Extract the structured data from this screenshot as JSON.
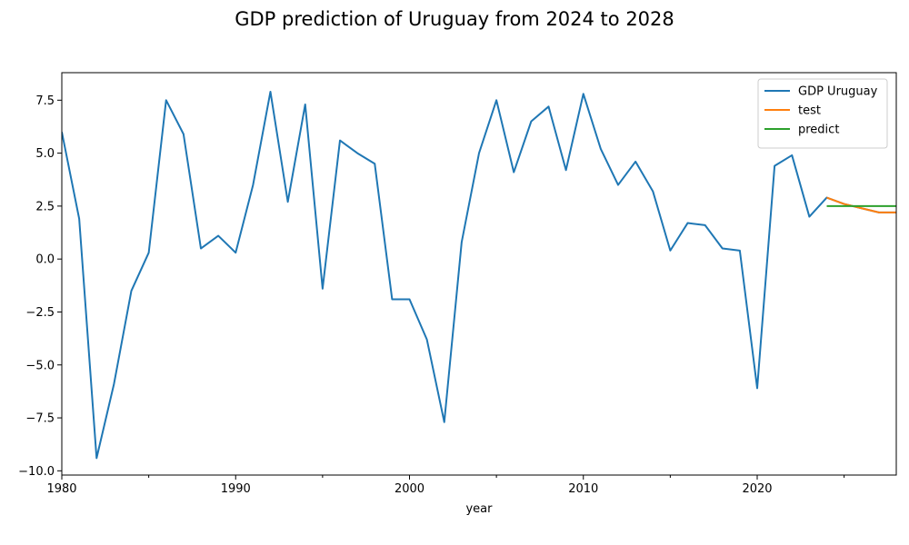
{
  "chart_data": {
    "type": "line",
    "title": "GDP prediction of Uruguay from 2024 to 2028",
    "xlabel": "year",
    "ylabel": "",
    "xlim": [
      1980,
      2028
    ],
    "ylim": [
      -10.2,
      8.8
    ],
    "x_ticks": [
      1980,
      1990,
      2000,
      2010,
      2020
    ],
    "x_minor_ticks": [
      1985,
      1995,
      2005,
      2015,
      2025
    ],
    "y_ticks": [
      -10.0,
      -7.5,
      -5.0,
      -2.5,
      0.0,
      2.5,
      5.0,
      7.5
    ],
    "y_tick_labels": [
      "−10.0",
      "−7.5",
      "−5.0",
      "−2.5",
      "0.0",
      "2.5",
      "5.0",
      "7.5"
    ],
    "grid": false,
    "legend_position": "top-right",
    "series": [
      {
        "name": "GDP Uruguay",
        "color": "#1f77b4",
        "x": [
          1980,
          1981,
          1982,
          1983,
          1984,
          1985,
          1986,
          1987,
          1988,
          1989,
          1990,
          1991,
          1992,
          1993,
          1994,
          1995,
          1996,
          1997,
          1998,
          1999,
          2000,
          2001,
          2002,
          2003,
          2004,
          2005,
          2006,
          2007,
          2008,
          2009,
          2010,
          2011,
          2012,
          2013,
          2014,
          2015,
          2016,
          2017,
          2018,
          2019,
          2020,
          2021,
          2022,
          2023,
          2024,
          2025,
          2026,
          2027,
          2028
        ],
        "values": [
          6.0,
          1.9,
          -9.4,
          -5.9,
          -1.5,
          0.3,
          7.5,
          5.9,
          0.5,
          1.1,
          0.3,
          3.5,
          7.9,
          2.7,
          7.3,
          -1.4,
          5.6,
          5.0,
          4.5,
          -1.9,
          -1.9,
          -3.8,
          -7.7,
          0.8,
          5.0,
          7.5,
          4.1,
          6.5,
          7.2,
          4.2,
          7.8,
          5.2,
          3.5,
          4.6,
          3.2,
          0.4,
          1.7,
          1.6,
          0.5,
          0.4,
          -6.1,
          4.4,
          4.9,
          2.0,
          2.9,
          2.6,
          2.4,
          2.2,
          2.2
        ]
      },
      {
        "name": "test",
        "color": "#ff7f0e",
        "x": [
          2024,
          2025,
          2026,
          2027,
          2028
        ],
        "values": [
          2.9,
          2.6,
          2.4,
          2.2,
          2.2
        ]
      },
      {
        "name": "predict",
        "color": "#2ca02c",
        "x": [
          2024,
          2025,
          2026,
          2027,
          2028
        ],
        "values": [
          2.5,
          2.5,
          2.5,
          2.5,
          2.5
        ]
      }
    ]
  }
}
